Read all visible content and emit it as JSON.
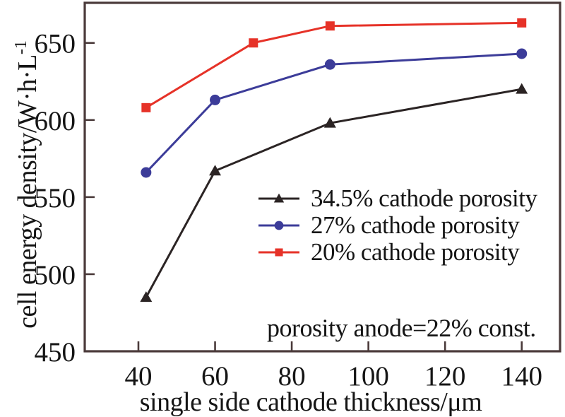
{
  "chart_data": {
    "type": "line",
    "title": "",
    "xlabel": "single side cathode thickness/μm",
    "ylabel": "cell energy density/W·h·L⁻¹",
    "ylabel_parts": {
      "base": "cell energy density/W·h·L",
      "sup": "-1"
    },
    "annotation": "porosity anode=22% const.",
    "xlim": [
      26,
      150
    ],
    "ylim": [
      450,
      676
    ],
    "xticks": [
      40,
      60,
      80,
      100,
      120,
      140
    ],
    "yticks": [
      450,
      500,
      550,
      600,
      650
    ],
    "grid": false,
    "legend_position": "inside-center-right",
    "series": [
      {
        "name": "34.5% cathode porosity",
        "marker": "triangle",
        "color": "#2b2424",
        "points": [
          [
            42,
            485
          ],
          [
            60,
            567
          ],
          [
            90,
            598
          ],
          [
            140,
            620
          ]
        ]
      },
      {
        "name": "27% cathode porosity",
        "marker": "circle",
        "color": "#3c3c99",
        "points": [
          [
            42,
            566
          ],
          [
            60,
            613
          ],
          [
            90,
            636
          ],
          [
            140,
            643
          ]
        ]
      },
      {
        "name": "20% cathode porosity",
        "marker": "square",
        "color": "#e63228",
        "points": [
          [
            42,
            608
          ],
          [
            70,
            650
          ],
          [
            90,
            661
          ],
          [
            140,
            663
          ]
        ]
      }
    ]
  },
  "colors": {
    "axis": "#4a3a3a",
    "text": "#151515",
    "background": "#ffffff"
  }
}
